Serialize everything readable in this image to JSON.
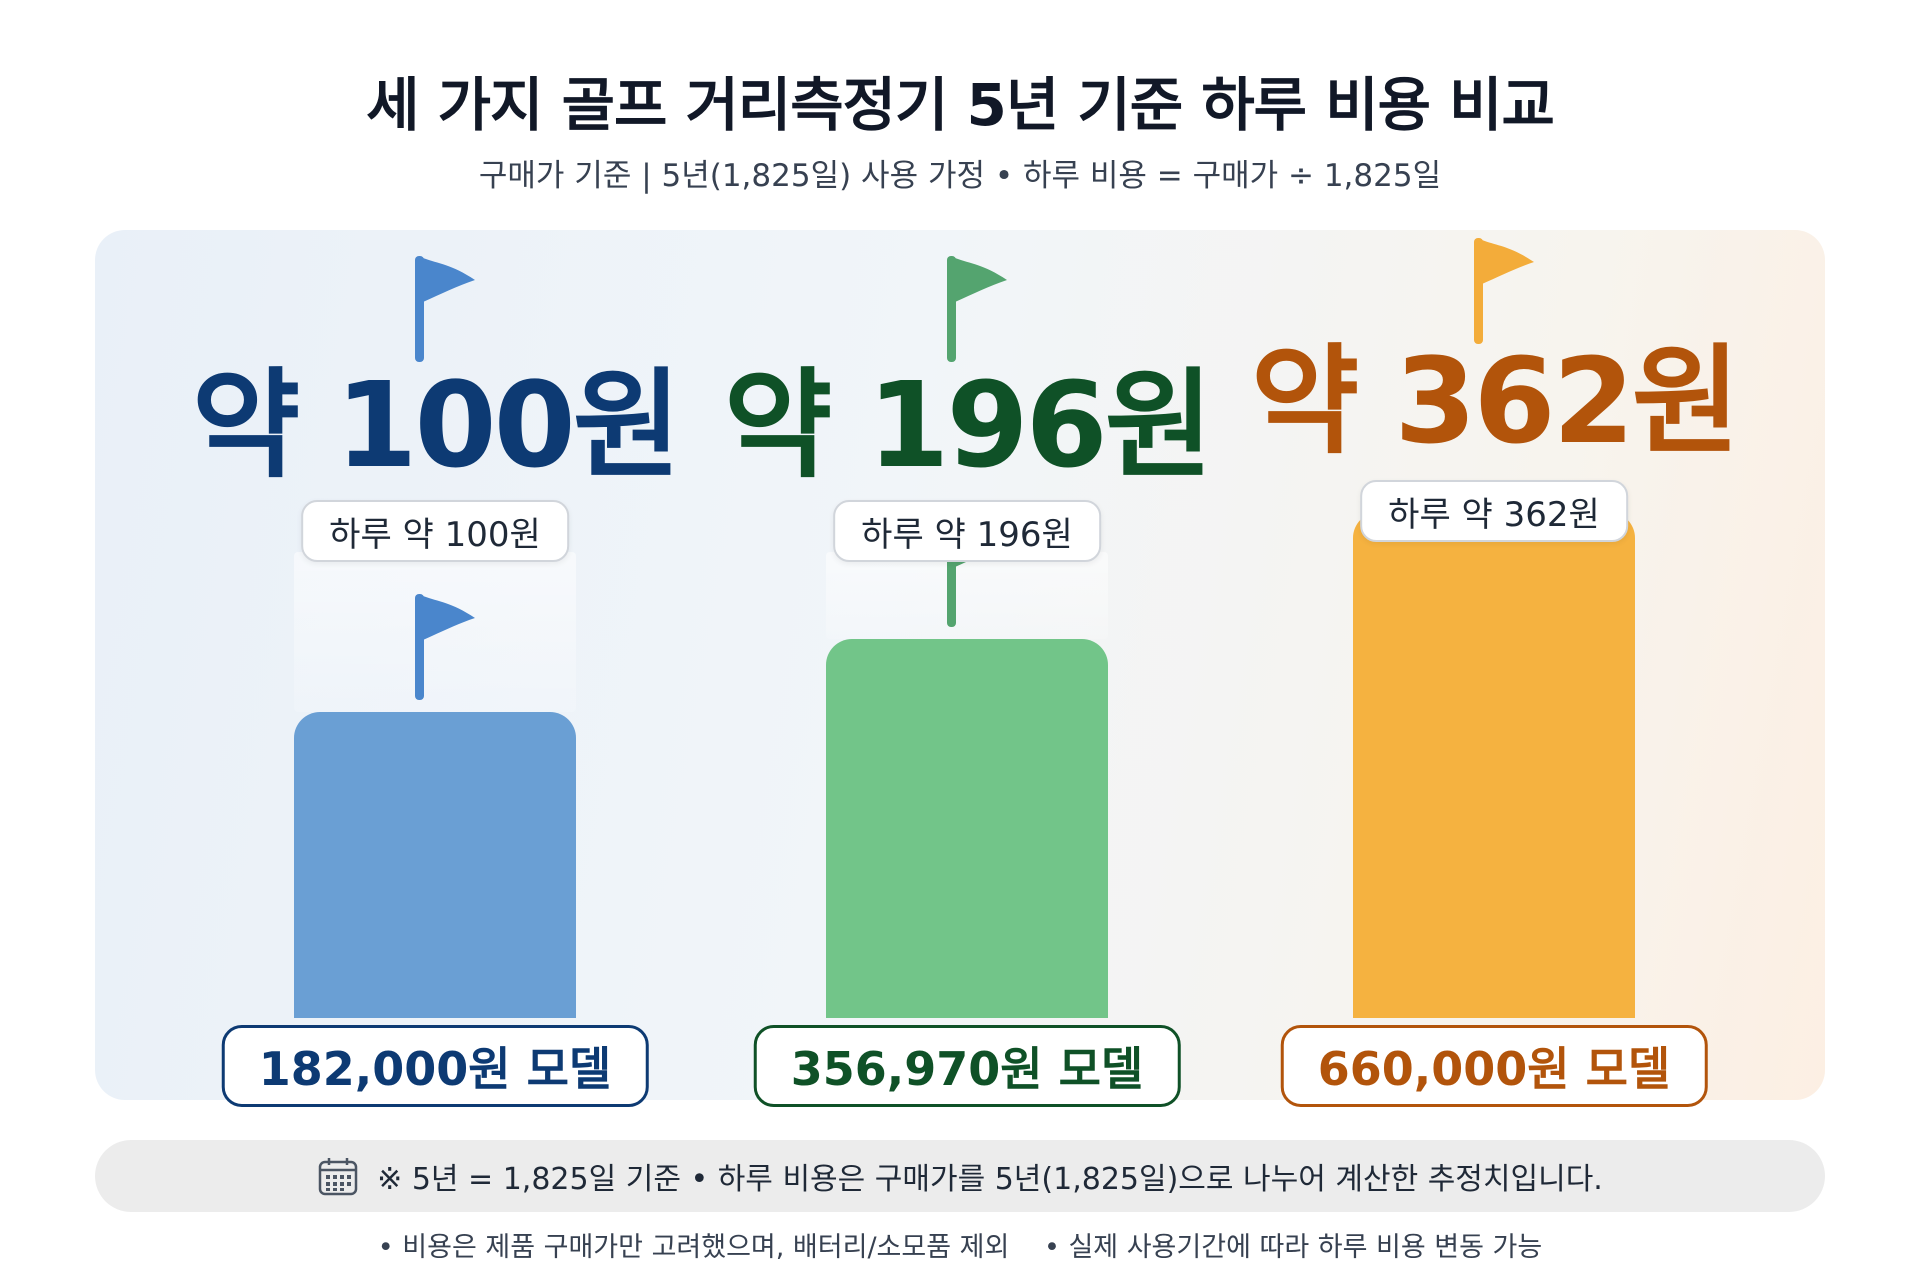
{
  "header": {
    "title": "세 가지 골프 거리측정기 5년 기준 하루 비용 비교",
    "subtitle": "구매가 기준 | 5년(1,825일) 사용 가정 • 하루 비용 = 구매가 ÷ 1,825일"
  },
  "chart_data": {
    "type": "bar",
    "title": "세 가지 골프 거리측정기 5년 기준 하루 비용 비교",
    "subtitle": "구매가 기준 | 5년(1,825일) 사용 가정 • 하루 비용 = 구매가 ÷ 1,825일",
    "categories": [
      "182,000원 모델",
      "356,970원 모델",
      "660,000원 모델"
    ],
    "values": [
      100,
      196,
      362
    ],
    "unit": "원",
    "ylim": [
      0,
      362
    ],
    "value_labels": [
      "약 100원",
      "약 196원",
      "약 362원"
    ],
    "pill_labels": [
      "하루 약 100원",
      "하루 약 196원",
      "하루 약 362원"
    ],
    "colors": [
      "#6a9fd4",
      "#72c589",
      "#f5b240"
    ],
    "text_colors": [
      "#0d3a73",
      "#0f5127",
      "#b2540b"
    ],
    "flag_colors": [
      "#4a86cc",
      "#54a46f",
      "#f3ac3a"
    ],
    "grid": false,
    "legend": "none"
  },
  "note": {
    "icon": "calendar-icon",
    "text": "※ 5년 = 1,825일 기준 • 하루 비용은 구매가를 5년(1,825일)으로 나누어 계산한 추정치입니다."
  },
  "footnotes": [
    "• 비용은 제품 구매가만 고려했으며, 배터리/소모품 제외",
    "• 실제 사용기간에 따라 하루 비용 변동 가능"
  ]
}
